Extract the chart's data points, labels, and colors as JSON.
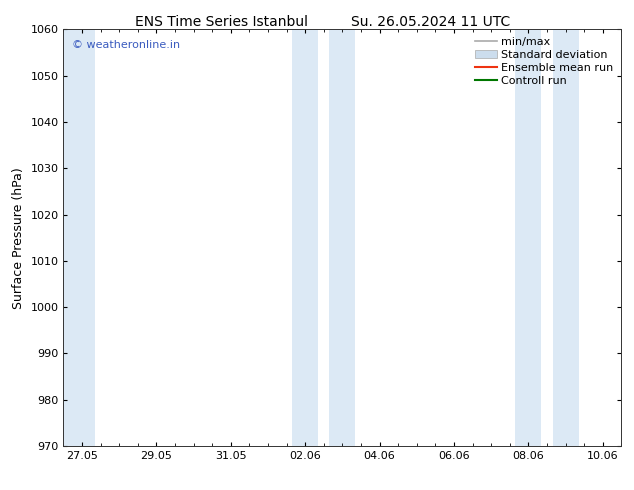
{
  "title_left": "ENS Time Series Istanbul",
  "title_right": "Su. 26.05.2024 11 UTC",
  "ylabel": "Surface Pressure (hPa)",
  "ylim": [
    970,
    1060
  ],
  "yticks": [
    970,
    980,
    990,
    1000,
    1010,
    1020,
    1030,
    1040,
    1050,
    1060
  ],
  "x_tick_labels": [
    "27.05",
    "29.05",
    "31.05",
    "02.06",
    "04.06",
    "06.06",
    "08.06",
    "10.06"
  ],
  "x_tick_positions": [
    0,
    2,
    4,
    6,
    8,
    10,
    12,
    14
  ],
  "xlim": [
    -0.5,
    14.5
  ],
  "shaded_regions": [
    {
      "xmin": -0.5,
      "xmax": 0.35
    },
    {
      "xmin": 5.65,
      "xmax": 6.35
    },
    {
      "xmin": 6.65,
      "xmax": 7.35
    },
    {
      "xmin": 11.65,
      "xmax": 12.35
    },
    {
      "xmin": 12.65,
      "xmax": 13.35
    }
  ],
  "shade_color": "#dce9f5",
  "background_color": "#ffffff",
  "watermark_text": "© weatheronline.in",
  "watermark_color": "#3a5bbf",
  "legend_items": [
    {
      "label": "min/max",
      "type": "hline",
      "color": "#aaaaaa",
      "lw": 1.2
    },
    {
      "label": "Standard deviation",
      "type": "box",
      "color": "#ccdded",
      "lw": 5
    },
    {
      "label": "Ensemble mean run",
      "type": "line",
      "color": "#ee3311",
      "lw": 1.5
    },
    {
      "label": "Controll run",
      "type": "line",
      "color": "#007700",
      "lw": 1.5
    }
  ],
  "title_fontsize": 10,
  "ylabel_fontsize": 9,
  "tick_fontsize": 8,
  "legend_fontsize": 8
}
